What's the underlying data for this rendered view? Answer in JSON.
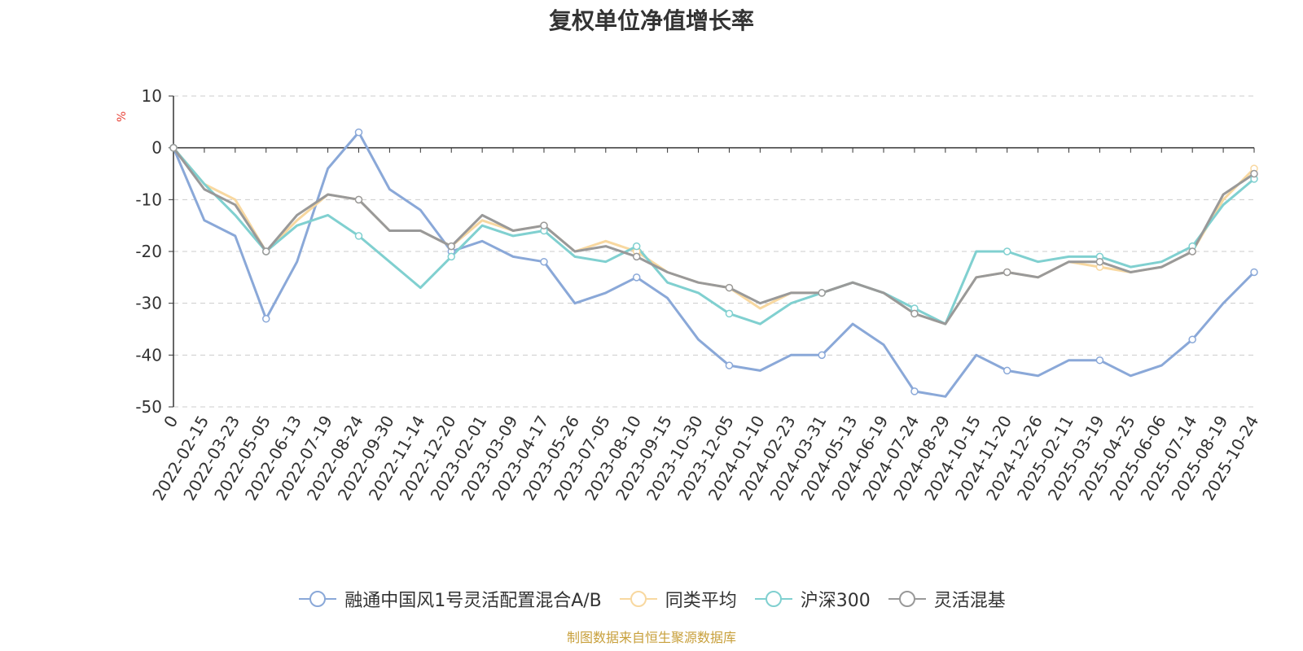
{
  "chart_data": {
    "type": "line",
    "title": "复权单位净值增长率",
    "ylabel": "%",
    "ylim": [
      -50,
      10
    ],
    "yticks": [
      10,
      0,
      -10,
      -20,
      -30,
      -40,
      -50
    ],
    "grid": true,
    "legend_position": "bottom",
    "x_tick_labels": [
      "0",
      "2022-02-15",
      "2022-03-23",
      "2022-05-05",
      "2022-06-13",
      "2022-07-19",
      "2022-08-24",
      "2022-09-30",
      "2022-11-14",
      "2022-12-20",
      "2023-02-01",
      "2023-03-09",
      "2023-04-17",
      "2023-05-26",
      "2023-07-05",
      "2023-08-10",
      "2023-09-15",
      "2023-10-30",
      "2023-12-05",
      "2024-01-10",
      "2024-02-23",
      "2024-03-31",
      "2024-05-13",
      "2024-06-19",
      "2024-07-24",
      "2024-08-29",
      "2024-10-15",
      "2024-11-20",
      "2024-12-26",
      "2025-02-11",
      "2025-03-19",
      "2025-04-25",
      "2025-06-06",
      "2025-07-14",
      "2025-08-19",
      "2025-10-24"
    ],
    "series": [
      {
        "name": "融通中国风1号灵活配置混合A/B",
        "color": "#8aa8d8",
        "values": [
          0,
          -14,
          -17,
          -33,
          -22,
          -4,
          3,
          -8,
          -12,
          -20,
          -18,
          -21,
          -22,
          -30,
          -28,
          -25,
          -29,
          -37,
          -42,
          -43,
          -40,
          -40,
          -34,
          -38,
          -47,
          -48,
          -40,
          -43,
          -44,
          -41,
          -41,
          -44,
          -42,
          -37,
          -30,
          -24
        ]
      },
      {
        "name": "同类平均",
        "color": "#f8d8a0",
        "values": [
          0,
          -7,
          -10,
          -20,
          -14,
          -9,
          -10,
          -16,
          -16,
          -19,
          -14,
          -16,
          -15,
          -20,
          -18,
          -20,
          -24,
          -26,
          -27,
          -31,
          -28,
          -28,
          -26,
          -28,
          -32,
          -34,
          -25,
          -24,
          -25,
          -22,
          -23,
          -24,
          -23,
          -20,
          -10,
          -4
        ]
      },
      {
        "name": "沪深300",
        "color": "#80d0d0",
        "values": [
          0,
          -7,
          -13,
          -20,
          -15,
          -13,
          -17,
          -22,
          -27,
          -21,
          -15,
          -17,
          -16,
          -21,
          -22,
          -19,
          -26,
          -28,
          -32,
          -34,
          -30,
          -28,
          -26,
          -28,
          -31,
          -34,
          -20,
          -20,
          -22,
          -21,
          -21,
          -23,
          -22,
          -19,
          -11,
          -6
        ]
      },
      {
        "name": "灵活混基",
        "color": "#999999",
        "values": [
          0,
          -8,
          -11,
          -20,
          -13,
          -9,
          -10,
          -16,
          -16,
          -19,
          -13,
          -16,
          -15,
          -20,
          -19,
          -21,
          -24,
          -26,
          -27,
          -30,
          -28,
          -28,
          -26,
          -28,
          -32,
          -34,
          -25,
          -24,
          -25,
          -22,
          -22,
          -24,
          -23,
          -20,
          -9,
          -5
        ]
      }
    ]
  },
  "footer": {
    "source": "制图数据来自恒生聚源数据库"
  }
}
